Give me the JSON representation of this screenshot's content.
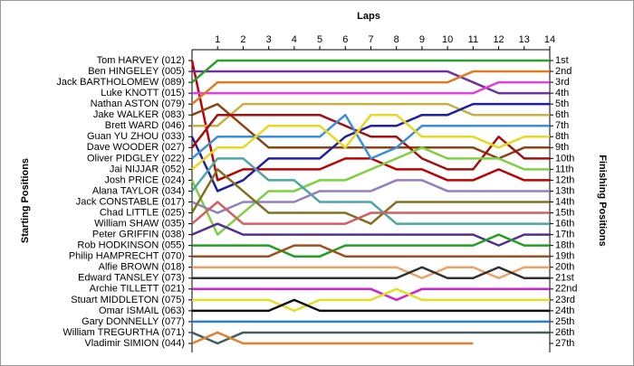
{
  "chart_data": {
    "type": "line",
    "x_label": "Laps",
    "y_label": "Starting Positions",
    "y2_label": "Finishing Positions",
    "x": [
      0,
      1,
      2,
      3,
      4,
      5,
      6,
      7,
      8,
      9,
      10,
      11,
      12,
      13,
      14
    ],
    "xlim": [
      0,
      14
    ],
    "xticks": [
      1,
      2,
      3,
      4,
      5,
      6,
      7,
      8,
      9,
      10,
      11,
      12,
      13,
      14
    ],
    "ylim": [
      1,
      27
    ],
    "y_reversed": true,
    "y2ticks": [
      {
        "value": 1,
        "label": "1st"
      },
      {
        "value": 2,
        "label": "2nd"
      },
      {
        "value": 3,
        "label": "3rd"
      },
      {
        "value": 4,
        "label": "4th"
      },
      {
        "value": 5,
        "label": "5th"
      },
      {
        "value": 6,
        "label": "6th"
      },
      {
        "value": 7,
        "label": "7th"
      },
      {
        "value": 8,
        "label": "8th"
      },
      {
        "value": 9,
        "label": "9th"
      },
      {
        "value": 10,
        "label": "10th"
      },
      {
        "value": 11,
        "label": "11th"
      },
      {
        "value": 12,
        "label": "12th"
      },
      {
        "value": 13,
        "label": "13th"
      },
      {
        "value": 14,
        "label": "14th"
      },
      {
        "value": 15,
        "label": "15th"
      },
      {
        "value": 16,
        "label": "16th"
      },
      {
        "value": 17,
        "label": "17th"
      },
      {
        "value": 18,
        "label": "18th"
      },
      {
        "value": 19,
        "label": "19th"
      },
      {
        "value": 20,
        "label": "20th"
      },
      {
        "value": 21,
        "label": "21st"
      },
      {
        "value": 22,
        "label": "22nd"
      },
      {
        "value": 23,
        "label": "23rd"
      },
      {
        "value": 24,
        "label": "24th"
      },
      {
        "value": 25,
        "label": "25th"
      },
      {
        "value": 26,
        "label": "26th"
      },
      {
        "value": 27,
        "label": "27th"
      }
    ],
    "series": [
      {
        "name": "Tom HARVEY (012)",
        "color": "#c00000",
        "values": [
          1,
          12,
          11,
          11,
          11,
          11,
          10,
          10,
          11,
          11,
          12,
          12,
          11,
          12,
          12
        ]
      },
      {
        "name": "Ben HINGELEY (005)",
        "color": "#7030a0",
        "values": [
          2,
          2,
          2,
          2,
          2,
          2,
          2,
          2,
          2,
          2,
          2,
          3,
          4,
          4,
          4
        ]
      },
      {
        "name": "Jack BARTHOLOMEW (089)",
        "color": "#2ca02c",
        "values": [
          3,
          1,
          1,
          1,
          1,
          1,
          1,
          1,
          1,
          1,
          1,
          1,
          1,
          1,
          1
        ]
      },
      {
        "name": "Luke KNOTT (015)",
        "color": "#e040e0",
        "values": [
          4,
          4,
          4,
          4,
          4,
          4,
          4,
          4,
          4,
          4,
          4,
          4,
          3,
          3,
          3
        ]
      },
      {
        "name": "Nathan ASTON (079)",
        "color": "#e07b20",
        "values": [
          5,
          3,
          3,
          3,
          3,
          3,
          3,
          3,
          3,
          3,
          3,
          2,
          2,
          2,
          2
        ]
      },
      {
        "name": "Jake WALKER (083)",
        "color": "#8b4513",
        "values": [
          6,
          5,
          7,
          9,
          9,
          9,
          9,
          9,
          9,
          9,
          9,
          9,
          10,
          9,
          9
        ]
      },
      {
        "name": "Brett WARD (046)",
        "color": "#c8b040",
        "values": [
          7,
          7,
          5,
          5,
          5,
          5,
          5,
          5,
          5,
          5,
          5,
          6,
          6,
          6,
          6
        ]
      },
      {
        "name": "Guan YU ZHOU (033)",
        "color": "#1f1fa0",
        "values": [
          8,
          13,
          12,
          10,
          10,
          10,
          8,
          7,
          7,
          6,
          6,
          5,
          5,
          5,
          5
        ]
      },
      {
        "name": "Dave WOODER (027)",
        "color": "#a01010",
        "values": [
          9,
          6,
          6,
          6,
          6,
          6,
          7,
          8,
          8,
          10,
          11,
          11,
          8,
          10,
          10
        ]
      },
      {
        "name": "Oliver PIDGLEY (022)",
        "color": "#3a8fd9",
        "values": [
          10,
          8,
          8,
          8,
          8,
          8,
          6,
          10,
          9,
          7,
          7,
          7,
          7,
          7,
          7
        ]
      },
      {
        "name": "Jai NIJJAR (052)",
        "color": "#e8d820",
        "values": [
          11,
          9,
          9,
          7,
          7,
          7,
          9,
          6,
          6,
          8,
          8,
          8,
          9,
          8,
          8
        ]
      },
      {
        "name": "Josh PRICE (024)",
        "color": "#7fd040",
        "values": [
          12,
          17,
          15,
          13,
          13,
          12,
          12,
          11,
          10,
          9,
          10,
          10,
          10,
          11,
          11
        ]
      },
      {
        "name": "Alana TAYLOR (034)",
        "color": "#4aa8a0",
        "values": [
          13,
          10,
          10,
          12,
          12,
          14,
          14,
          14,
          16,
          16,
          16,
          16,
          16,
          16,
          16
        ]
      },
      {
        "name": "Jack CONSTABLE (017)",
        "color": "#9080c0",
        "values": [
          14,
          15,
          14,
          14,
          14,
          13,
          13,
          13,
          12,
          12,
          13,
          13,
          13,
          13,
          13
        ]
      },
      {
        "name": "Chad LITTLE (025)",
        "color": "#807020",
        "values": [
          15,
          11,
          13,
          15,
          15,
          15,
          15,
          16,
          14,
          14,
          14,
          14,
          14,
          14,
          14
        ]
      },
      {
        "name": "William SHAW (035)",
        "color": "#d06060",
        "values": [
          16,
          14,
          16,
          16,
          16,
          16,
          16,
          15,
          15,
          15,
          15,
          15,
          15,
          15,
          15
        ]
      },
      {
        "name": "Peter GRIFFIN (038)",
        "color": "#503090",
        "values": [
          17,
          16,
          17,
          17,
          17,
          17,
          17,
          17,
          17,
          17,
          17,
          17,
          18,
          17,
          17
        ]
      },
      {
        "name": "Rob HODKINSON (055)",
        "color": "#20a020",
        "values": [
          18,
          18,
          18,
          18,
          19,
          19,
          18,
          18,
          18,
          18,
          18,
          18,
          17,
          18,
          18
        ]
      },
      {
        "name": "Philip HAMPRECHT (070)",
        "color": "#a05020",
        "values": [
          19,
          19,
          19,
          19,
          18,
          18,
          19,
          19,
          19,
          19,
          19,
          19,
          19,
          19,
          19
        ]
      },
      {
        "name": "Alfie BROWN (018)",
        "color": "#f0a060",
        "values": [
          20,
          20,
          20,
          20,
          20,
          20,
          20,
          20,
          20,
          21,
          20,
          20,
          21,
          20,
          20
        ]
      },
      {
        "name": "Edward TANSLEY (073)",
        "color": "#303030",
        "values": [
          21,
          21,
          21,
          21,
          21,
          21,
          21,
          21,
          21,
          20,
          21,
          21,
          20,
          21,
          21
        ]
      },
      {
        "name": "Archie TILLETT (021)",
        "color": "#d020d0",
        "values": [
          22,
          22,
          22,
          22,
          22,
          22,
          22,
          22,
          23,
          22,
          22,
          22,
          22,
          22,
          22
        ]
      },
      {
        "name": "Stuart MIDDLETON (075)",
        "color": "#e0e020",
        "values": [
          23,
          23,
          23,
          23,
          24,
          23,
          23,
          23,
          22,
          23,
          23,
          23,
          23,
          23,
          23
        ]
      },
      {
        "name": "Omar ISMAIL (063)",
        "color": "#101010",
        "values": [
          24,
          24,
          24,
          24,
          23,
          24,
          24,
          24,
          24,
          24,
          24,
          24,
          24,
          24,
          24
        ]
      },
      {
        "name": "Gary DONNELLY (077)",
        "color": "#2a7fd0",
        "values": [
          25,
          25,
          25,
          25,
          25,
          25,
          25,
          25,
          25,
          25,
          25,
          25,
          25,
          25,
          25
        ]
      },
      {
        "name": "William TREGURTHA (071)",
        "color": "#406060",
        "values": [
          26,
          27,
          26,
          26,
          26,
          26,
          26,
          26,
          26,
          26,
          26,
          26,
          26,
          26,
          26
        ]
      },
      {
        "name": "Vladimir SIMION (044)",
        "color": "#e08030",
        "values": [
          27,
          26,
          27,
          27,
          27,
          27,
          27,
          27,
          27,
          27,
          27,
          27,
          null,
          null,
          null
        ]
      }
    ]
  }
}
